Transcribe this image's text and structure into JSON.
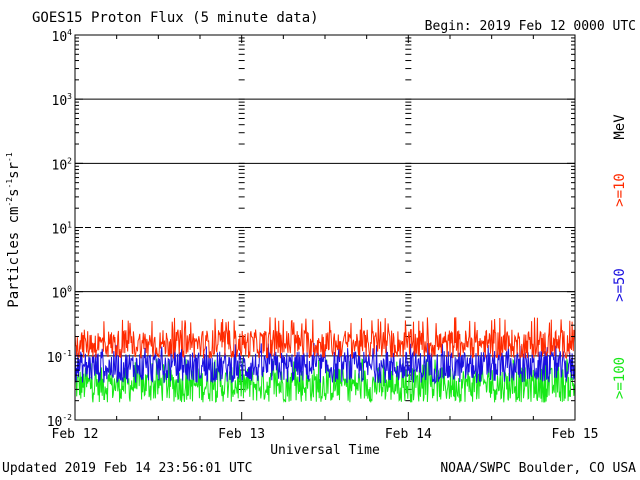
{
  "header": {
    "title": "GOES15 Proton Flux (5 minute data)",
    "begin": "Begin: 2019 Feb 12 0000 UTC"
  },
  "footer": {
    "updated": "Updated 2019 Feb 14 23:56:01 UTC",
    "source": "NOAA/SWPC Boulder, CO USA"
  },
  "chart_data": {
    "type": "line",
    "title": "GOES15 Proton Flux (5 minute data)",
    "xlabel": "Universal Time",
    "ylabel_main": "Particles cm",
    "ylabel_exp1": "-2",
    "ylabel_mid1": "s",
    "ylabel_exp2": "-1",
    "ylabel_mid2": "sr",
    "ylabel_exp3": "-1",
    "yscale": "log",
    "ylim": [
      0.01,
      10000
    ],
    "xlim": [
      0,
      3
    ],
    "x_ticks": [
      {
        "label": "Feb 12",
        "value": 0
      },
      {
        "label": "Feb 13",
        "value": 1
      },
      {
        "label": "Feb 14",
        "value": 2
      },
      {
        "label": "Feb 15",
        "value": 3
      }
    ],
    "y_ticks": [
      {
        "base": "10",
        "exp": "4",
        "value": 10000
      },
      {
        "base": "10",
        "exp": "3",
        "value": 1000
      },
      {
        "base": "10",
        "exp": "2",
        "value": 100
      },
      {
        "base": "10",
        "exp": "1",
        "value": 10
      },
      {
        "base": "10",
        "exp": "0",
        "value": 1
      },
      {
        "base": "10",
        "exp": "-1",
        "value": 0.1
      },
      {
        "base": "10",
        "exp": "-2",
        "value": 0.01
      }
    ],
    "thresholds": [
      {
        "value": 10,
        "style": "dashed"
      }
    ],
    "grid": true,
    "legend_placement": "right",
    "unit_label": "MeV",
    "series": [
      {
        "name": ">=10",
        "color": "#ff2a00",
        "baseline": 0.17,
        "spread": 0.45,
        "spike_max": 0.4
      },
      {
        "name": ">=50",
        "color": "#1a10e0",
        "baseline": 0.075,
        "spread": 0.5,
        "spike_max": 0.16
      },
      {
        "name": ">=100",
        "color": "#17e817",
        "baseline": 0.04,
        "spread": 0.55,
        "spike_max": 0.09
      }
    ]
  }
}
